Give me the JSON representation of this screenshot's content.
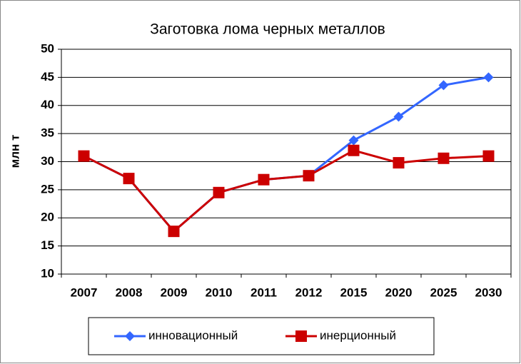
{
  "chart_data": {
    "type": "line",
    "title": "Заготовка лома черных металлов",
    "y_label": "млн т",
    "categories": [
      "2007",
      "2008",
      "2009",
      "2010",
      "2011",
      "2012",
      "2015",
      "2020",
      "2025",
      "2030"
    ],
    "series": [
      {
        "name": "инновационный",
        "color": "#3366ff",
        "marker": "diamond",
        "values": [
          31,
          27,
          17.6,
          24.5,
          26.8,
          27.5,
          33.8,
          38,
          43.6,
          45
        ]
      },
      {
        "name": "инерционный",
        "color": "#cc0000",
        "marker": "square",
        "values": [
          31,
          27,
          17.6,
          24.5,
          26.8,
          27.5,
          32,
          29.8,
          30.6,
          31
        ]
      }
    ],
    "ylim": [
      10,
      50
    ],
    "yticks": [
      10,
      15,
      20,
      25,
      30,
      35,
      40,
      45,
      50
    ],
    "grid": true,
    "legend": "bottom"
  }
}
